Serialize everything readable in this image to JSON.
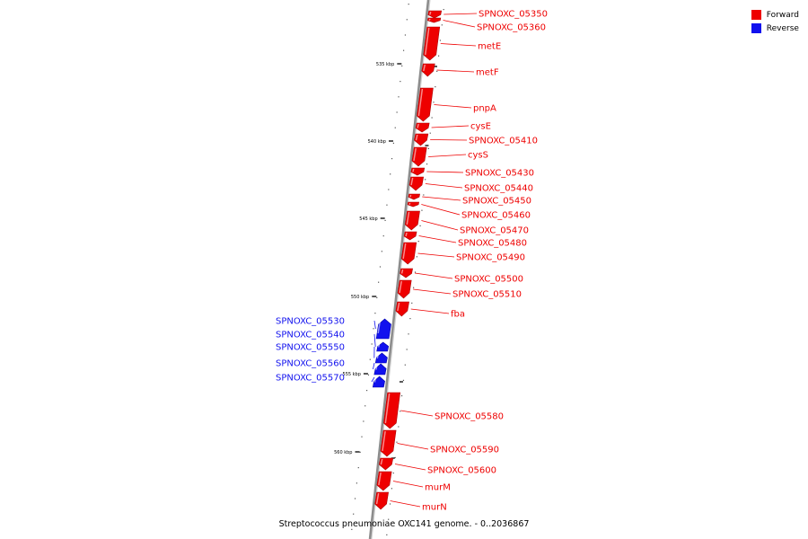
{
  "colors": {
    "forward": "#ee0000",
    "reverse": "#1111ee",
    "backbone": "#8c8c8c",
    "tick": "#000000"
  },
  "legend": [
    {
      "label": "Forward",
      "color": "#ee0000"
    },
    {
      "label": "Reverse",
      "color": "#1111ee"
    }
  ],
  "footer": "Streptococcus pneumoniae OXC141 genome. - 0..2036867",
  "scale_ticks": [
    "535 kbp",
    "540 kbp",
    "545 kbp",
    "550 kbp",
    "555 kbp",
    "560 kbp"
  ],
  "genes": [
    {
      "label": "SPNOXC_05350",
      "strand": "forward"
    },
    {
      "label": "SPNOXC_05360",
      "strand": "forward"
    },
    {
      "label": "metE",
      "strand": "forward"
    },
    {
      "label": "metF",
      "strand": "forward"
    },
    {
      "label": "pnpA",
      "strand": "forward"
    },
    {
      "label": "cysE",
      "strand": "forward"
    },
    {
      "label": "SPNOXC_05410",
      "strand": "forward"
    },
    {
      "label": "cysS",
      "strand": "forward"
    },
    {
      "label": "SPNOXC_05430",
      "strand": "forward"
    },
    {
      "label": "SPNOXC_05440",
      "strand": "forward"
    },
    {
      "label": "SPNOXC_05450",
      "strand": "forward"
    },
    {
      "label": "SPNOXC_05460",
      "strand": "forward"
    },
    {
      "label": "SPNOXC_05470",
      "strand": "forward"
    },
    {
      "label": "SPNOXC_05480",
      "strand": "forward"
    },
    {
      "label": "SPNOXC_05490",
      "strand": "forward"
    },
    {
      "label": "SPNOXC_05500",
      "strand": "forward"
    },
    {
      "label": "SPNOXC_05510",
      "strand": "forward"
    },
    {
      "label": "fba",
      "strand": "forward"
    },
    {
      "label": "SPNOXC_05530",
      "strand": "reverse"
    },
    {
      "label": "SPNOXC_05540",
      "strand": "reverse"
    },
    {
      "label": "SPNOXC_05550",
      "strand": "reverse"
    },
    {
      "label": "SPNOXC_05560",
      "strand": "reverse"
    },
    {
      "label": "SPNOXC_05570",
      "strand": "reverse"
    },
    {
      "label": "SPNOXC_05580",
      "strand": "forward"
    },
    {
      "label": "SPNOXC_05590",
      "strand": "forward"
    },
    {
      "label": "SPNOXC_05600",
      "strand": "forward"
    },
    {
      "label": "murM",
      "strand": "forward"
    },
    {
      "label": "murN",
      "strand": "forward"
    }
  ]
}
